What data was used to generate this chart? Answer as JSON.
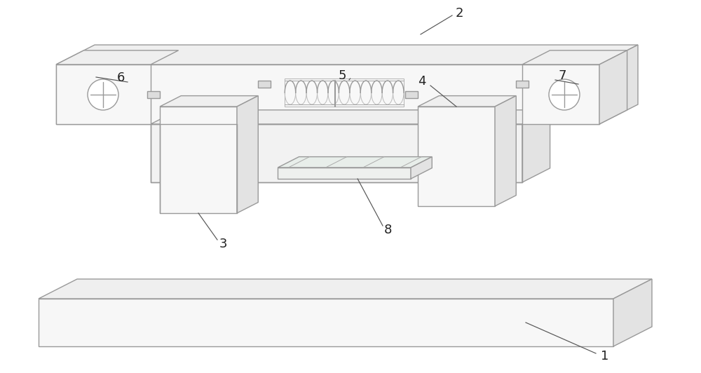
{
  "bg": "#ffffff",
  "lc": "#999999",
  "lc2": "#777777",
  "lw": 1.0,
  "ann_lw": 0.85,
  "ann_color": "#555555",
  "face_front": "#f7f7f7",
  "face_top": "#efefef",
  "face_right": "#e3e3e3",
  "face_slot": "#f2f2f2"
}
